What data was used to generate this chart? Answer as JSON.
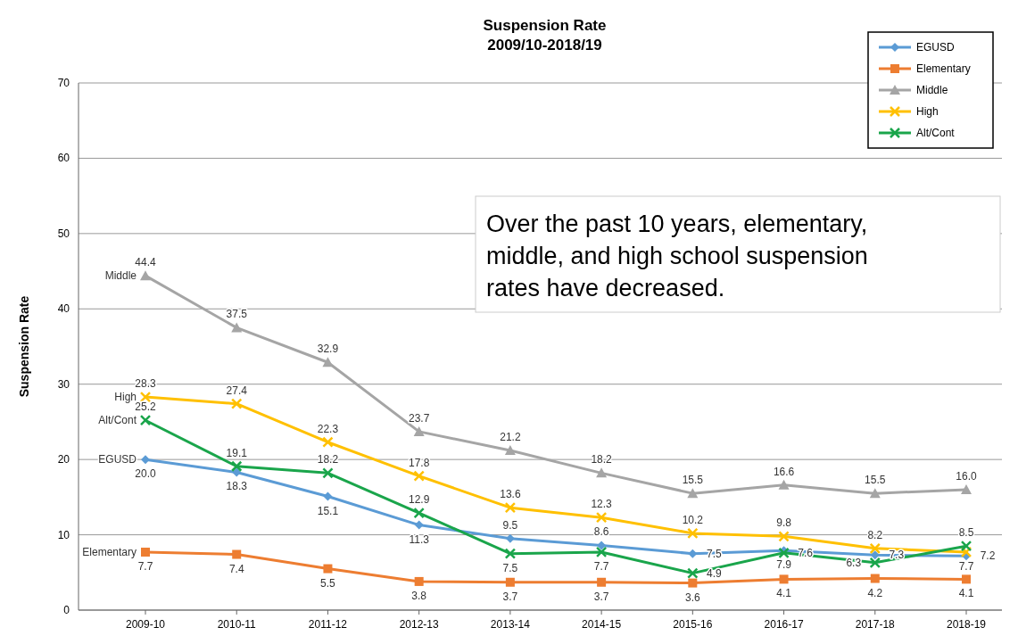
{
  "chart_data": {
    "type": "line",
    "title": "Suspension Rate",
    "subtitle": "2009/10-2018/19",
    "ylabel": "Suspension Rate",
    "categories": [
      "2009-10",
      "2010-11",
      "2011-12",
      "2012-13",
      "2013-14",
      "2014-15",
      "2015-16",
      "2016-17",
      "2017-18",
      "2018-19"
    ],
    "series": [
      {
        "name": "EGUSD",
        "color": "#5b9bd5",
        "marker": "diamond",
        "values": [
          20.0,
          18.3,
          15.1,
          11.3,
          9.5,
          8.6,
          7.5,
          7.9,
          7.3,
          7.2
        ],
        "value_labels": [
          "20.0",
          "18.3",
          "15.1",
          "11.3",
          "9.5",
          "8.6",
          "7.5",
          "7.9",
          "7.3",
          "7.2"
        ]
      },
      {
        "name": "Elementary",
        "color": "#ed7d31",
        "marker": "square",
        "values": [
          7.7,
          7.4,
          5.5,
          3.8,
          3.7,
          3.7,
          3.6,
          4.1,
          4.2,
          4.1
        ],
        "value_labels": [
          "7.7",
          "7.4",
          "5.5",
          "3.8",
          "3.7",
          "3.7",
          "3.6",
          "4.1",
          "4.2",
          "4.1"
        ]
      },
      {
        "name": "Middle",
        "color": "#a5a5a5",
        "marker": "triangle",
        "values": [
          44.4,
          37.5,
          32.9,
          23.7,
          21.2,
          18.2,
          15.5,
          16.6,
          15.5,
          16.0
        ],
        "value_labels": [
          "44.4",
          "37.5",
          "32.9",
          "23.7",
          "21.2",
          "18.2",
          "15.5",
          "16.6",
          "15.5",
          "16.0"
        ]
      },
      {
        "name": "High",
        "color": "#ffc000",
        "marker": "cross",
        "values": [
          28.3,
          27.4,
          22.3,
          17.8,
          13.6,
          12.3,
          10.2,
          9.8,
          8.2,
          7.7
        ],
        "value_labels": [
          "28.3",
          "27.4",
          "22.3",
          "17.8",
          "13.6",
          "12.3",
          "10.2",
          "9.8",
          "8.2",
          "7.7"
        ]
      },
      {
        "name": "Alt/Cont",
        "color": "#1aa54b",
        "marker": "cross",
        "values": [
          25.2,
          19.1,
          18.2,
          12.9,
          7.5,
          7.7,
          4.9,
          7.6,
          6.3,
          8.5
        ],
        "value_labels": [
          "25.2",
          "19.1",
          "18.2",
          "12.9",
          "7.5",
          "7.7",
          "4.9",
          "7.6",
          "6.3",
          "8.5"
        ]
      }
    ],
    "ylim": [
      0,
      70
    ],
    "yticks": [
      0,
      10,
      20,
      30,
      40,
      50,
      60,
      70
    ],
    "grid": "y",
    "legend": "top right",
    "data_labels": true,
    "annotations": [
      "Over the past 10 years, elementary, middle, and high school suspension rates have decreased."
    ]
  }
}
